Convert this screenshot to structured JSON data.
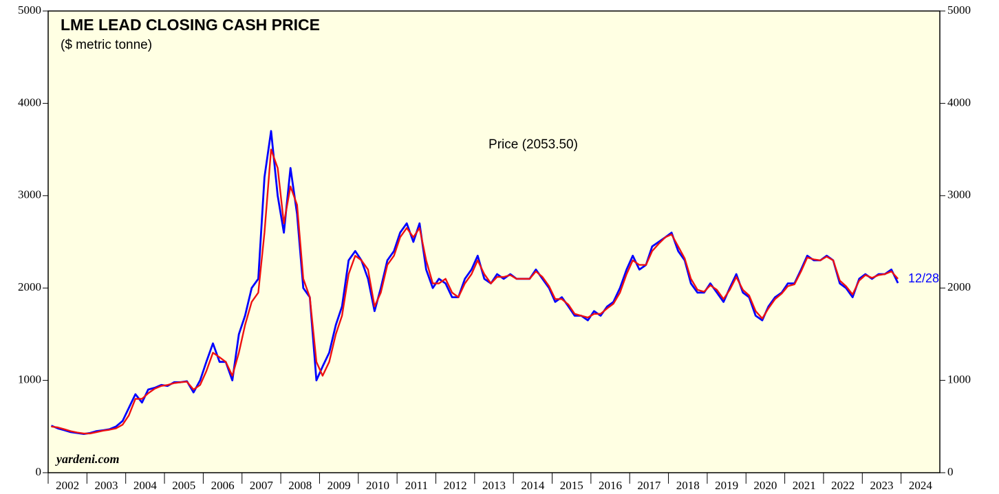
{
  "chart_data": {
    "type": "line",
    "title": "LME LEAD CLOSING CASH PRICE",
    "subtitle": "($ metric tonne)",
    "annotations": {
      "price": "Price (2053.50)",
      "date": "12/28",
      "source": "yardeni.com"
    },
    "x": [
      2002.08,
      2002.25,
      2002.42,
      2002.58,
      2002.75,
      2002.92,
      2003.08,
      2003.25,
      2003.42,
      2003.58,
      2003.75,
      2003.92,
      2004.08,
      2004.25,
      2004.42,
      2004.58,
      2004.75,
      2004.92,
      2005.08,
      2005.25,
      2005.42,
      2005.58,
      2005.75,
      2005.92,
      2006.08,
      2006.25,
      2006.42,
      2006.58,
      2006.75,
      2006.92,
      2007.08,
      2007.25,
      2007.42,
      2007.58,
      2007.75,
      2007.92,
      2008.08,
      2008.25,
      2008.42,
      2008.58,
      2008.75,
      2008.92,
      2009.08,
      2009.25,
      2009.42,
      2009.58,
      2009.75,
      2009.92,
      2010.08,
      2010.25,
      2010.42,
      2010.58,
      2010.75,
      2010.92,
      2011.08,
      2011.25,
      2011.42,
      2011.58,
      2011.75,
      2011.92,
      2012.08,
      2012.25,
      2012.42,
      2012.58,
      2012.75,
      2012.92,
      2013.08,
      2013.25,
      2013.42,
      2013.58,
      2013.75,
      2013.92,
      2014.08,
      2014.25,
      2014.42,
      2014.58,
      2014.75,
      2014.92,
      2015.08,
      2015.25,
      2015.42,
      2015.58,
      2015.75,
      2015.92,
      2016.08,
      2016.25,
      2016.42,
      2016.58,
      2016.75,
      2016.92,
      2017.08,
      2017.25,
      2017.42,
      2017.58,
      2017.75,
      2017.92,
      2018.08,
      2018.25,
      2018.42,
      2018.58,
      2018.75,
      2018.92,
      2019.08,
      2019.25,
      2019.42,
      2019.58,
      2019.75,
      2019.92,
      2020.08,
      2020.25,
      2020.42,
      2020.58,
      2020.75,
      2020.92,
      2021.08,
      2021.25,
      2021.42,
      2021.58,
      2021.75,
      2021.92,
      2022.08,
      2022.25,
      2022.42,
      2022.58,
      2022.75,
      2022.92,
      2023.08,
      2023.25,
      2023.42,
      2023.58,
      2023.75,
      2023.92
    ],
    "series": [
      {
        "color": "#0000ff",
        "values": [
          510,
          480,
          460,
          440,
          430,
          420,
          430,
          450,
          460,
          470,
          500,
          560,
          700,
          850,
          760,
          900,
          920,
          950,
          940,
          980,
          980,
          990,
          870,
          1000,
          1200,
          1400,
          1200,
          1200,
          1000,
          1500,
          1700,
          2000,
          2100,
          3200,
          3700,
          3000,
          2600,
          3300,
          2800,
          2000,
          1900,
          1000,
          1150,
          1300,
          1600,
          1800,
          2300,
          2400,
          2300,
          2100,
          1750,
          2000,
          2300,
          2400,
          2600,
          2700,
          2500,
          2700,
          2200,
          2000,
          2100,
          2050,
          1900,
          1900,
          2100,
          2200,
          2350,
          2100,
          2050,
          2150,
          2100,
          2150,
          2100,
          2100,
          2100,
          2200,
          2100,
          2000,
          1850,
          1900,
          1800,
          1700,
          1700,
          1650,
          1750,
          1700,
          1800,
          1850,
          2000,
          2200,
          2350,
          2200,
          2250,
          2450,
          2500,
          2550,
          2600,
          2400,
          2300,
          2050,
          1950,
          1950,
          2050,
          1950,
          1850,
          2000,
          2150,
          1950,
          1900,
          1700,
          1650,
          1800,
          1900,
          1950,
          2050,
          2050,
          2200,
          2350,
          2300,
          2300,
          2350,
          2300,
          2050,
          2000,
          1900,
          2100,
          2150,
          2100,
          2150,
          2150,
          2200,
          2053.5
        ]
      },
      {
        "color": "#ee1111",
        "values": [
          500,
          490,
          470,
          450,
          435,
          425,
          425,
          440,
          455,
          465,
          480,
          520,
          620,
          800,
          800,
          860,
          910,
          940,
          950,
          970,
          980,
          985,
          900,
          950,
          1100,
          1300,
          1250,
          1200,
          1050,
          1300,
          1600,
          1850,
          1950,
          2600,
          3500,
          3300,
          2700,
          3100,
          2900,
          2100,
          1900,
          1200,
          1050,
          1200,
          1500,
          1700,
          2150,
          2350,
          2300,
          2200,
          1800,
          1950,
          2250,
          2350,
          2550,
          2650,
          2550,
          2650,
          2300,
          2050,
          2050,
          2100,
          1950,
          1900,
          2050,
          2150,
          2300,
          2150,
          2050,
          2120,
          2120,
          2140,
          2100,
          2100,
          2100,
          2180,
          2120,
          2020,
          1880,
          1880,
          1820,
          1720,
          1700,
          1680,
          1720,
          1720,
          1780,
          1830,
          1950,
          2150,
          2300,
          2250,
          2250,
          2400,
          2480,
          2550,
          2580,
          2450,
          2320,
          2100,
          1980,
          1960,
          2030,
          1980,
          1880,
          1980,
          2120,
          1980,
          1920,
          1750,
          1670,
          1780,
          1880,
          1940,
          2020,
          2040,
          2180,
          2330,
          2310,
          2300,
          2340,
          2300,
          2080,
          2020,
          1930,
          2080,
          2140,
          2110,
          2140,
          2150,
          2180,
          2100
        ]
      }
    ],
    "xlim": [
      2002,
      2025
    ],
    "xticks": [
      {
        "value": 2002,
        "label": "2002"
      },
      {
        "value": 2003,
        "label": "2003"
      },
      {
        "value": 2004,
        "label": "2004"
      },
      {
        "value": 2005,
        "label": "2005"
      },
      {
        "value": 2006,
        "label": "2006"
      },
      {
        "value": 2007,
        "label": "2007"
      },
      {
        "value": 2008,
        "label": "2008"
      },
      {
        "value": 2009,
        "label": "2009"
      },
      {
        "value": 2010,
        "label": "2010"
      },
      {
        "value": 2011,
        "label": "2011"
      },
      {
        "value": 2012,
        "label": "2012"
      },
      {
        "value": 2013,
        "label": "2013"
      },
      {
        "value": 2014,
        "label": "2014"
      },
      {
        "value": 2015,
        "label": "2015"
      },
      {
        "value": 2016,
        "label": "2016"
      },
      {
        "value": 2017,
        "label": "2017"
      },
      {
        "value": 2018,
        "label": "2018"
      },
      {
        "value": 2019,
        "label": "2019"
      },
      {
        "value": 2020,
        "label": "2020"
      },
      {
        "value": 2021,
        "label": "2021"
      },
      {
        "value": 2022,
        "label": "2022"
      },
      {
        "value": 2023,
        "label": "2023"
      },
      {
        "value": 2024,
        "label": "2024"
      }
    ],
    "ylim": [
      0,
      5000
    ],
    "yticks": [
      0,
      1000,
      2000,
      3000,
      4000,
      5000
    ],
    "background": "#ffffe3"
  }
}
